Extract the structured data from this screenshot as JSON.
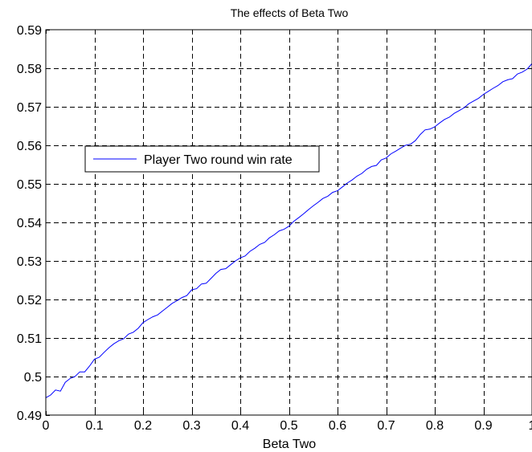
{
  "chart_data": {
    "type": "line",
    "title": "The effects of Beta Two",
    "xlabel": "Beta Two",
    "ylabel": "",
    "xlim": [
      0,
      1
    ],
    "ylim": [
      0.49,
      0.59
    ],
    "xticks": [
      0,
      0.1,
      0.2,
      0.3,
      0.4,
      0.5,
      0.6,
      0.7,
      0.8,
      0.9,
      1
    ],
    "xtick_labels": [
      "0",
      "0.1",
      "0.2",
      "0.3",
      "0.4",
      "0.5",
      "0.6",
      "0.7",
      "0.8",
      "0.9",
      "1"
    ],
    "yticks": [
      0.49,
      0.5,
      0.51,
      0.52,
      0.53,
      0.54,
      0.55,
      0.56,
      0.57,
      0.58,
      0.59
    ],
    "ytick_labels": [
      "0.49",
      "0.5",
      "0.51",
      "0.52",
      "0.53",
      "0.54",
      "0.55",
      "0.56",
      "0.57",
      "0.58",
      "0.59"
    ],
    "grid": true,
    "grid_style": "dashed",
    "legend_position": "middle-left",
    "series": [
      {
        "name": "Player Two round win rate",
        "color": "#0000ff",
        "x": [
          0,
          0.01,
          0.02,
          0.03,
          0.04,
          0.05,
          0.06,
          0.07,
          0.08,
          0.09,
          0.1,
          0.11,
          0.12,
          0.13,
          0.14,
          0.15,
          0.16,
          0.17,
          0.18,
          0.19,
          0.2,
          0.21,
          0.22,
          0.23,
          0.24,
          0.25,
          0.26,
          0.27,
          0.28,
          0.29,
          0.3,
          0.31,
          0.32,
          0.33,
          0.34,
          0.35,
          0.36,
          0.37,
          0.38,
          0.39,
          0.4,
          0.41,
          0.42,
          0.43,
          0.44,
          0.45,
          0.46,
          0.47,
          0.48,
          0.49,
          0.5,
          0.51,
          0.52,
          0.53,
          0.54,
          0.55,
          0.56,
          0.57,
          0.58,
          0.59,
          0.6,
          0.61,
          0.62,
          0.63,
          0.64,
          0.65,
          0.66,
          0.67,
          0.68,
          0.69,
          0.7,
          0.71,
          0.72,
          0.73,
          0.74,
          0.75,
          0.76,
          0.77,
          0.78,
          0.79,
          0.8,
          0.81,
          0.82,
          0.83,
          0.84,
          0.85,
          0.86,
          0.87,
          0.88,
          0.89,
          0.9,
          0.91,
          0.92,
          0.93,
          0.94,
          0.95,
          0.96,
          0.97,
          0.98,
          0.99,
          1.0
        ],
        "y": [
          0.4945,
          0.4952,
          0.4965,
          0.4962,
          0.4985,
          0.4995,
          0.5,
          0.5012,
          0.5012,
          0.5027,
          0.5045,
          0.505,
          0.5063,
          0.5075,
          0.5085,
          0.5093,
          0.5098,
          0.511,
          0.5115,
          0.5125,
          0.514,
          0.5148,
          0.5155,
          0.516,
          0.517,
          0.518,
          0.519,
          0.5197,
          0.5205,
          0.521,
          0.5225,
          0.5228,
          0.524,
          0.5242,
          0.5255,
          0.5268,
          0.5278,
          0.528,
          0.529,
          0.53,
          0.5308,
          0.5313,
          0.5325,
          0.5333,
          0.5343,
          0.5348,
          0.536,
          0.5368,
          0.5378,
          0.5382,
          0.539,
          0.5403,
          0.5412,
          0.5422,
          0.5433,
          0.5443,
          0.5452,
          0.5462,
          0.5468,
          0.5478,
          0.5482,
          0.5492,
          0.5502,
          0.551,
          0.552,
          0.5527,
          0.5538,
          0.5545,
          0.5548,
          0.5562,
          0.5567,
          0.5578,
          0.5585,
          0.5593,
          0.56,
          0.5603,
          0.5612,
          0.5628,
          0.564,
          0.5642,
          0.5648,
          0.5658,
          0.5667,
          0.5673,
          0.5683,
          0.569,
          0.5697,
          0.5708,
          0.5715,
          0.5722,
          0.5732,
          0.574,
          0.5748,
          0.5755,
          0.5765,
          0.577,
          0.5773,
          0.5785,
          0.579,
          0.5798,
          0.5812
        ]
      }
    ]
  }
}
